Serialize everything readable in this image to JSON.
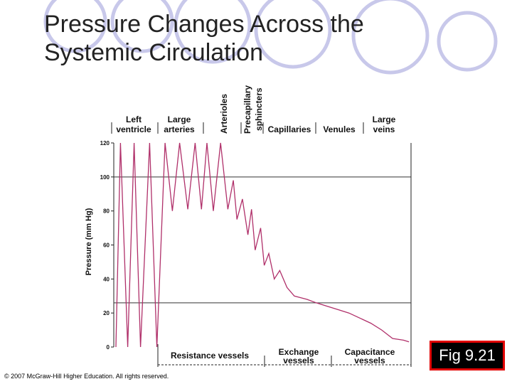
{
  "slide": {
    "title_line1": "Pressure Changes Across the",
    "title_line2": "Systemic Circulation",
    "fig_label": "Fig 9.21",
    "copyright": "© 2007 McGraw-Hill Higher Education. All rights reserved."
  },
  "colors": {
    "curve": "#b0306a",
    "circle_stroke": "#c8c8ea",
    "badge_border": "#e10000",
    "badge_fill": "#000000"
  },
  "chart_data": {
    "type": "line",
    "ylabel": "Pressure (mm Hg)",
    "ylim": [
      0,
      120
    ],
    "yticks": [
      0,
      20,
      40,
      60,
      80,
      100,
      120
    ],
    "reference_lines": [
      100,
      26
    ],
    "top_labels": [
      {
        "text": [
          "Left",
          "ventricle"
        ]
      },
      {
        "text": [
          "Large",
          "arteries"
        ]
      },
      {
        "text": [
          "Arterioles"
        ]
      },
      {
        "text": [
          "Precapillary",
          "sphincters"
        ]
      },
      {
        "text": [
          "Capillaries"
        ]
      },
      {
        "text": [
          "Venules"
        ]
      },
      {
        "text": [
          "Large",
          "veins"
        ]
      }
    ],
    "bottom_groups": [
      {
        "text": [
          "Resistance vessels"
        ]
      },
      {
        "text": [
          "Exchange",
          "vessels"
        ]
      },
      {
        "text": [
          "Capacitance",
          "vessels"
        ]
      }
    ],
    "series": [
      {
        "x": [
          0,
          5,
          13,
          20,
          27,
          37,
          45,
          54,
          62,
          70,
          79,
          87,
          94,
          100,
          107,
          115,
          123,
          129,
          133,
          139,
          145,
          149,
          153,
          159,
          163,
          168,
          174,
          180,
          188,
          196,
          203,
          210,
          220,
          232,
          244,
          256,
          268,
          280,
          292,
          304,
          316,
          322
        ],
        "y": [
          0,
          120,
          0,
          120,
          0,
          120,
          0,
          120,
          80,
          120,
          81,
          120,
          81,
          120,
          80,
          120,
          81,
          98,
          75,
          87,
          66,
          81,
          57,
          70,
          48,
          55,
          40,
          45,
          35,
          30,
          29,
          28,
          26,
          24,
          22,
          20,
          17,
          14,
          10,
          5,
          4,
          3
        ]
      }
    ]
  }
}
